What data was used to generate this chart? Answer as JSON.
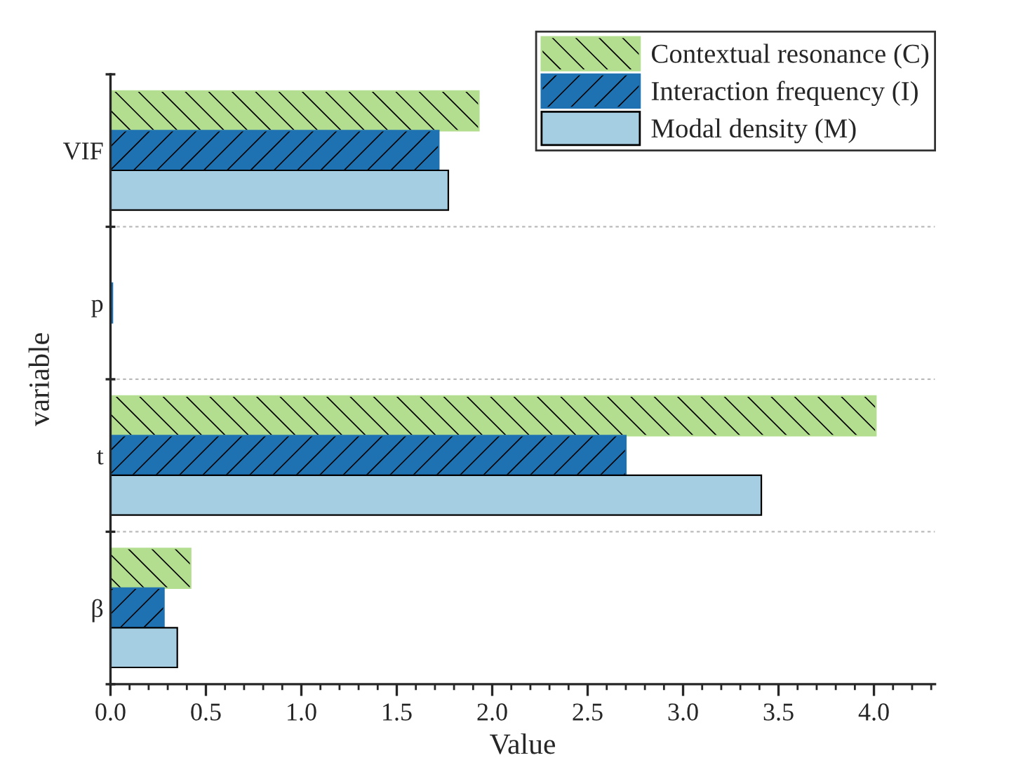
{
  "chart_data": {
    "type": "bar",
    "orientation": "horizontal",
    "xlabel": "Value",
    "ylabel": "variable",
    "categories": [
      "VIF",
      "p",
      "t",
      "β"
    ],
    "series": [
      {
        "name": "Contextual resonance (C)",
        "color": "#b3de8f",
        "values": [
          1.93,
          null,
          4.01,
          0.42
        ]
      },
      {
        "name": "Interaction frequency (I)",
        "color": "#1f72b2",
        "values": [
          1.72,
          0.01,
          2.7,
          0.28
        ]
      },
      {
        "name": "Modal density (M)",
        "color": "#a6cee3",
        "values": [
          1.77,
          null,
          3.41,
          0.35
        ]
      }
    ],
    "xlim": [
      0,
      4.32
    ],
    "xticks": [
      {
        "value": 0,
        "label": "0.0"
      },
      {
        "value": 0.5,
        "label": "0.5"
      },
      {
        "value": 1,
        "label": "1.0"
      },
      {
        "value": 1.5,
        "label": "1.5"
      },
      {
        "value": 2,
        "label": "2.0"
      },
      {
        "value": 2.5,
        "label": "2.5"
      },
      {
        "value": 3,
        "label": "3.0"
      },
      {
        "value": 3.5,
        "label": "3.5"
      },
      {
        "value": 4,
        "label": "4.0"
      }
    ],
    "grid": "y",
    "legend": "top right"
  }
}
